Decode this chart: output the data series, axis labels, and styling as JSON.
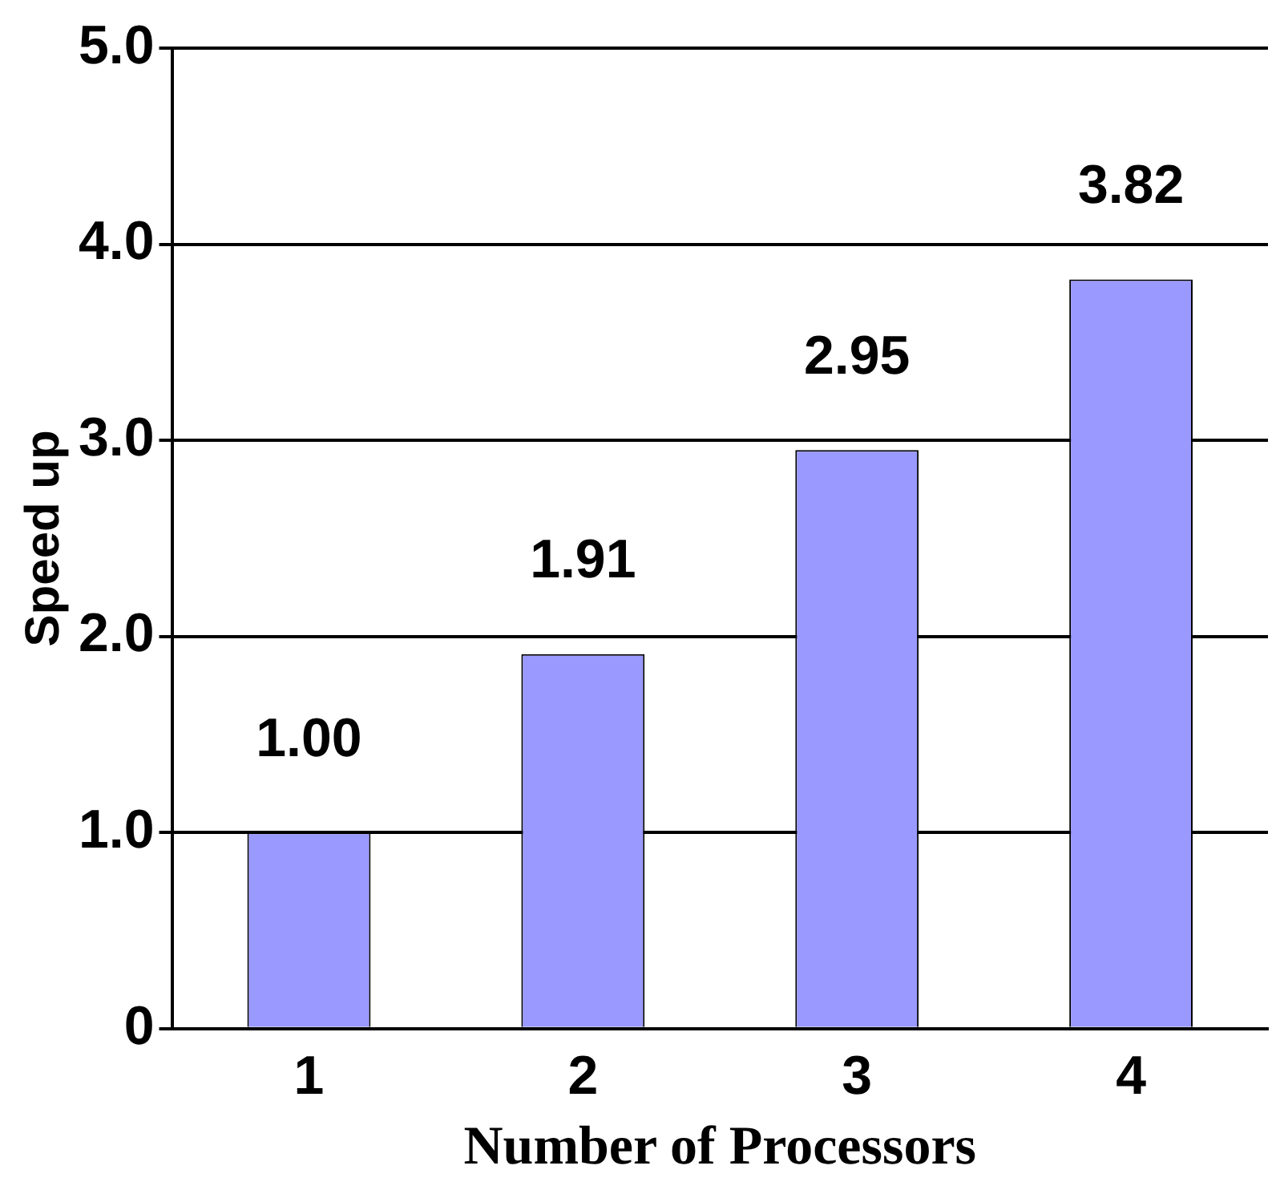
{
  "chart_data": {
    "type": "bar",
    "xlabel": "Number of Processors",
    "ylabel": "Speed up",
    "categories": [
      "1",
      "2",
      "3",
      "4"
    ],
    "values": [
      1.0,
      1.91,
      2.95,
      3.82
    ],
    "value_labels": [
      "1.00",
      "1.91",
      "2.95",
      "3.82"
    ],
    "color": "#9999ff",
    "ylim": [
      0,
      5
    ],
    "yticks": [
      {
        "value": 0,
        "label": "0"
      },
      {
        "value": 1,
        "label": "1.0"
      },
      {
        "value": 2,
        "label": "2.0"
      },
      {
        "value": 3,
        "label": "3.0"
      },
      {
        "value": 4,
        "label": "4.0"
      },
      {
        "value": 5,
        "label": "5.0"
      }
    ],
    "grid": "y"
  }
}
